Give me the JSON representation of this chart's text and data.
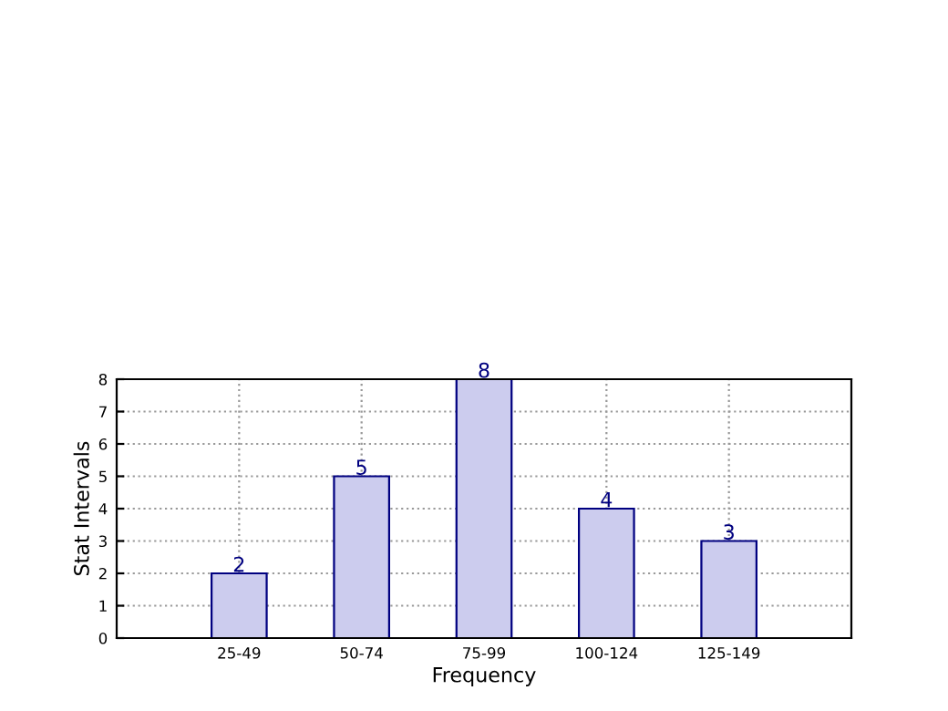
{
  "chart_data": {
    "type": "bar",
    "xlabel": "Frequency",
    "ylabel": "Stat Intervals",
    "categories": [
      "25-49",
      "50-74",
      "75-99",
      "100-124",
      "125-149"
    ],
    "values": [
      2,
      5,
      8,
      4,
      3
    ],
    "color": "#ccccee",
    "ylim": [
      0,
      8
    ],
    "yticks": [
      0,
      1,
      2,
      3,
      4,
      5,
      6,
      7,
      8
    ],
    "grid": true,
    "data_labels": true
  }
}
